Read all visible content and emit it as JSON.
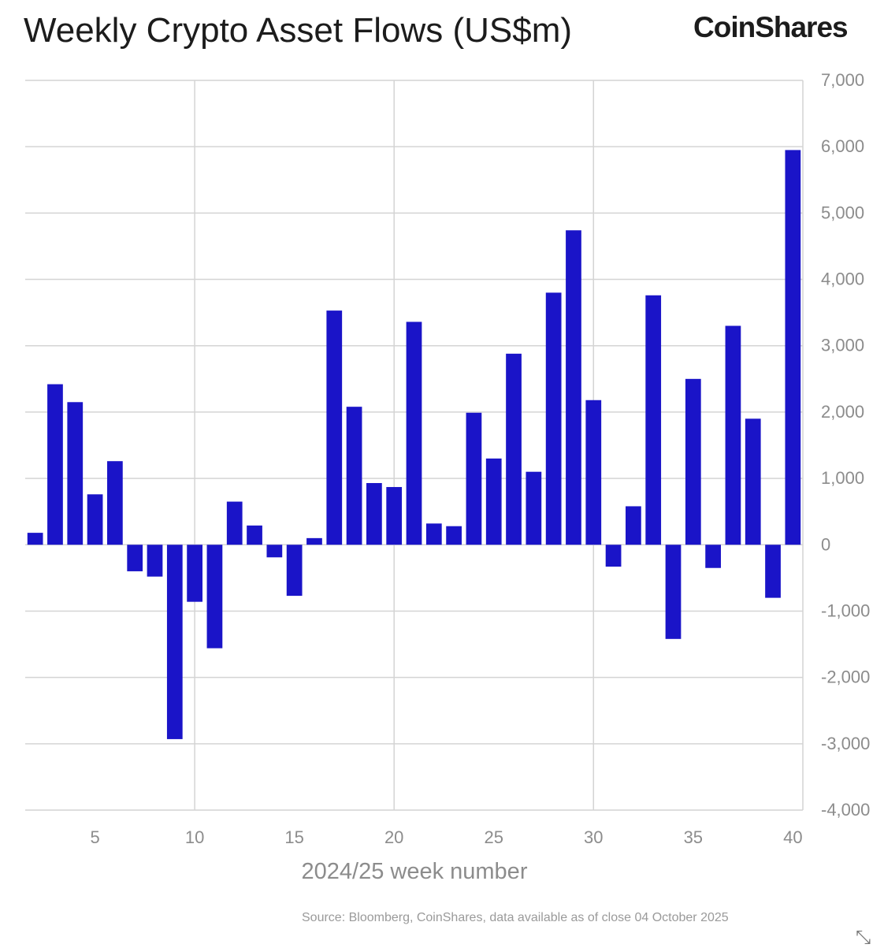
{
  "header": {
    "title": "Weekly Crypto Asset Flows (US$m)",
    "brand": "CoinShares"
  },
  "footer": {
    "source": "Source: Bloomberg, CoinShares, data available as of close 04 October 2025"
  },
  "expand_icon": "expand-arrows-icon",
  "colors": {
    "bar": "#1a14c8",
    "grid": "#d4d4d4",
    "tick_text": "#8c8c8c"
  },
  "chart_data": {
    "type": "bar",
    "title": "Weekly Crypto Asset Flows (US$m)",
    "xlabel": "2024/25 week number",
    "ylabel": "",
    "x": [
      2,
      3,
      4,
      5,
      6,
      7,
      8,
      9,
      10,
      11,
      12,
      13,
      14,
      15,
      16,
      17,
      18,
      19,
      20,
      21,
      22,
      23,
      24,
      25,
      26,
      27,
      28,
      29,
      30,
      31,
      32,
      33,
      34,
      35,
      36,
      37,
      38,
      39,
      40
    ],
    "values": [
      180,
      2420,
      2150,
      760,
      1260,
      -400,
      -480,
      -2930,
      -860,
      -1560,
      650,
      290,
      -190,
      -770,
      100,
      3530,
      2080,
      930,
      870,
      3360,
      320,
      280,
      1990,
      1300,
      2880,
      1100,
      3800,
      4740,
      2180,
      -330,
      580,
      3760,
      -1420,
      2500,
      -350,
      3300,
      1900,
      -800,
      5950
    ],
    "ylim": [
      -4000,
      7000
    ],
    "yticks": [
      -4000,
      -3000,
      -2000,
      -1000,
      0,
      1000,
      2000,
      3000,
      4000,
      5000,
      6000,
      7000
    ],
    "ytick_labels": [
      "-4,000",
      "-3,000",
      "-2,000",
      "-1,000",
      "0",
      "1,000",
      "2,000",
      "3,000",
      "4,000",
      "5,000",
      "6,000",
      "7,000"
    ],
    "xticks": [
      5,
      10,
      15,
      20,
      25,
      30,
      35,
      40
    ],
    "xtick_labels": [
      "5",
      "10",
      "15",
      "20",
      "25",
      "30",
      "35",
      "40"
    ],
    "vgrid_weeks": [
      10,
      20,
      30
    ],
    "grid": true,
    "y_axis_side": "right"
  }
}
